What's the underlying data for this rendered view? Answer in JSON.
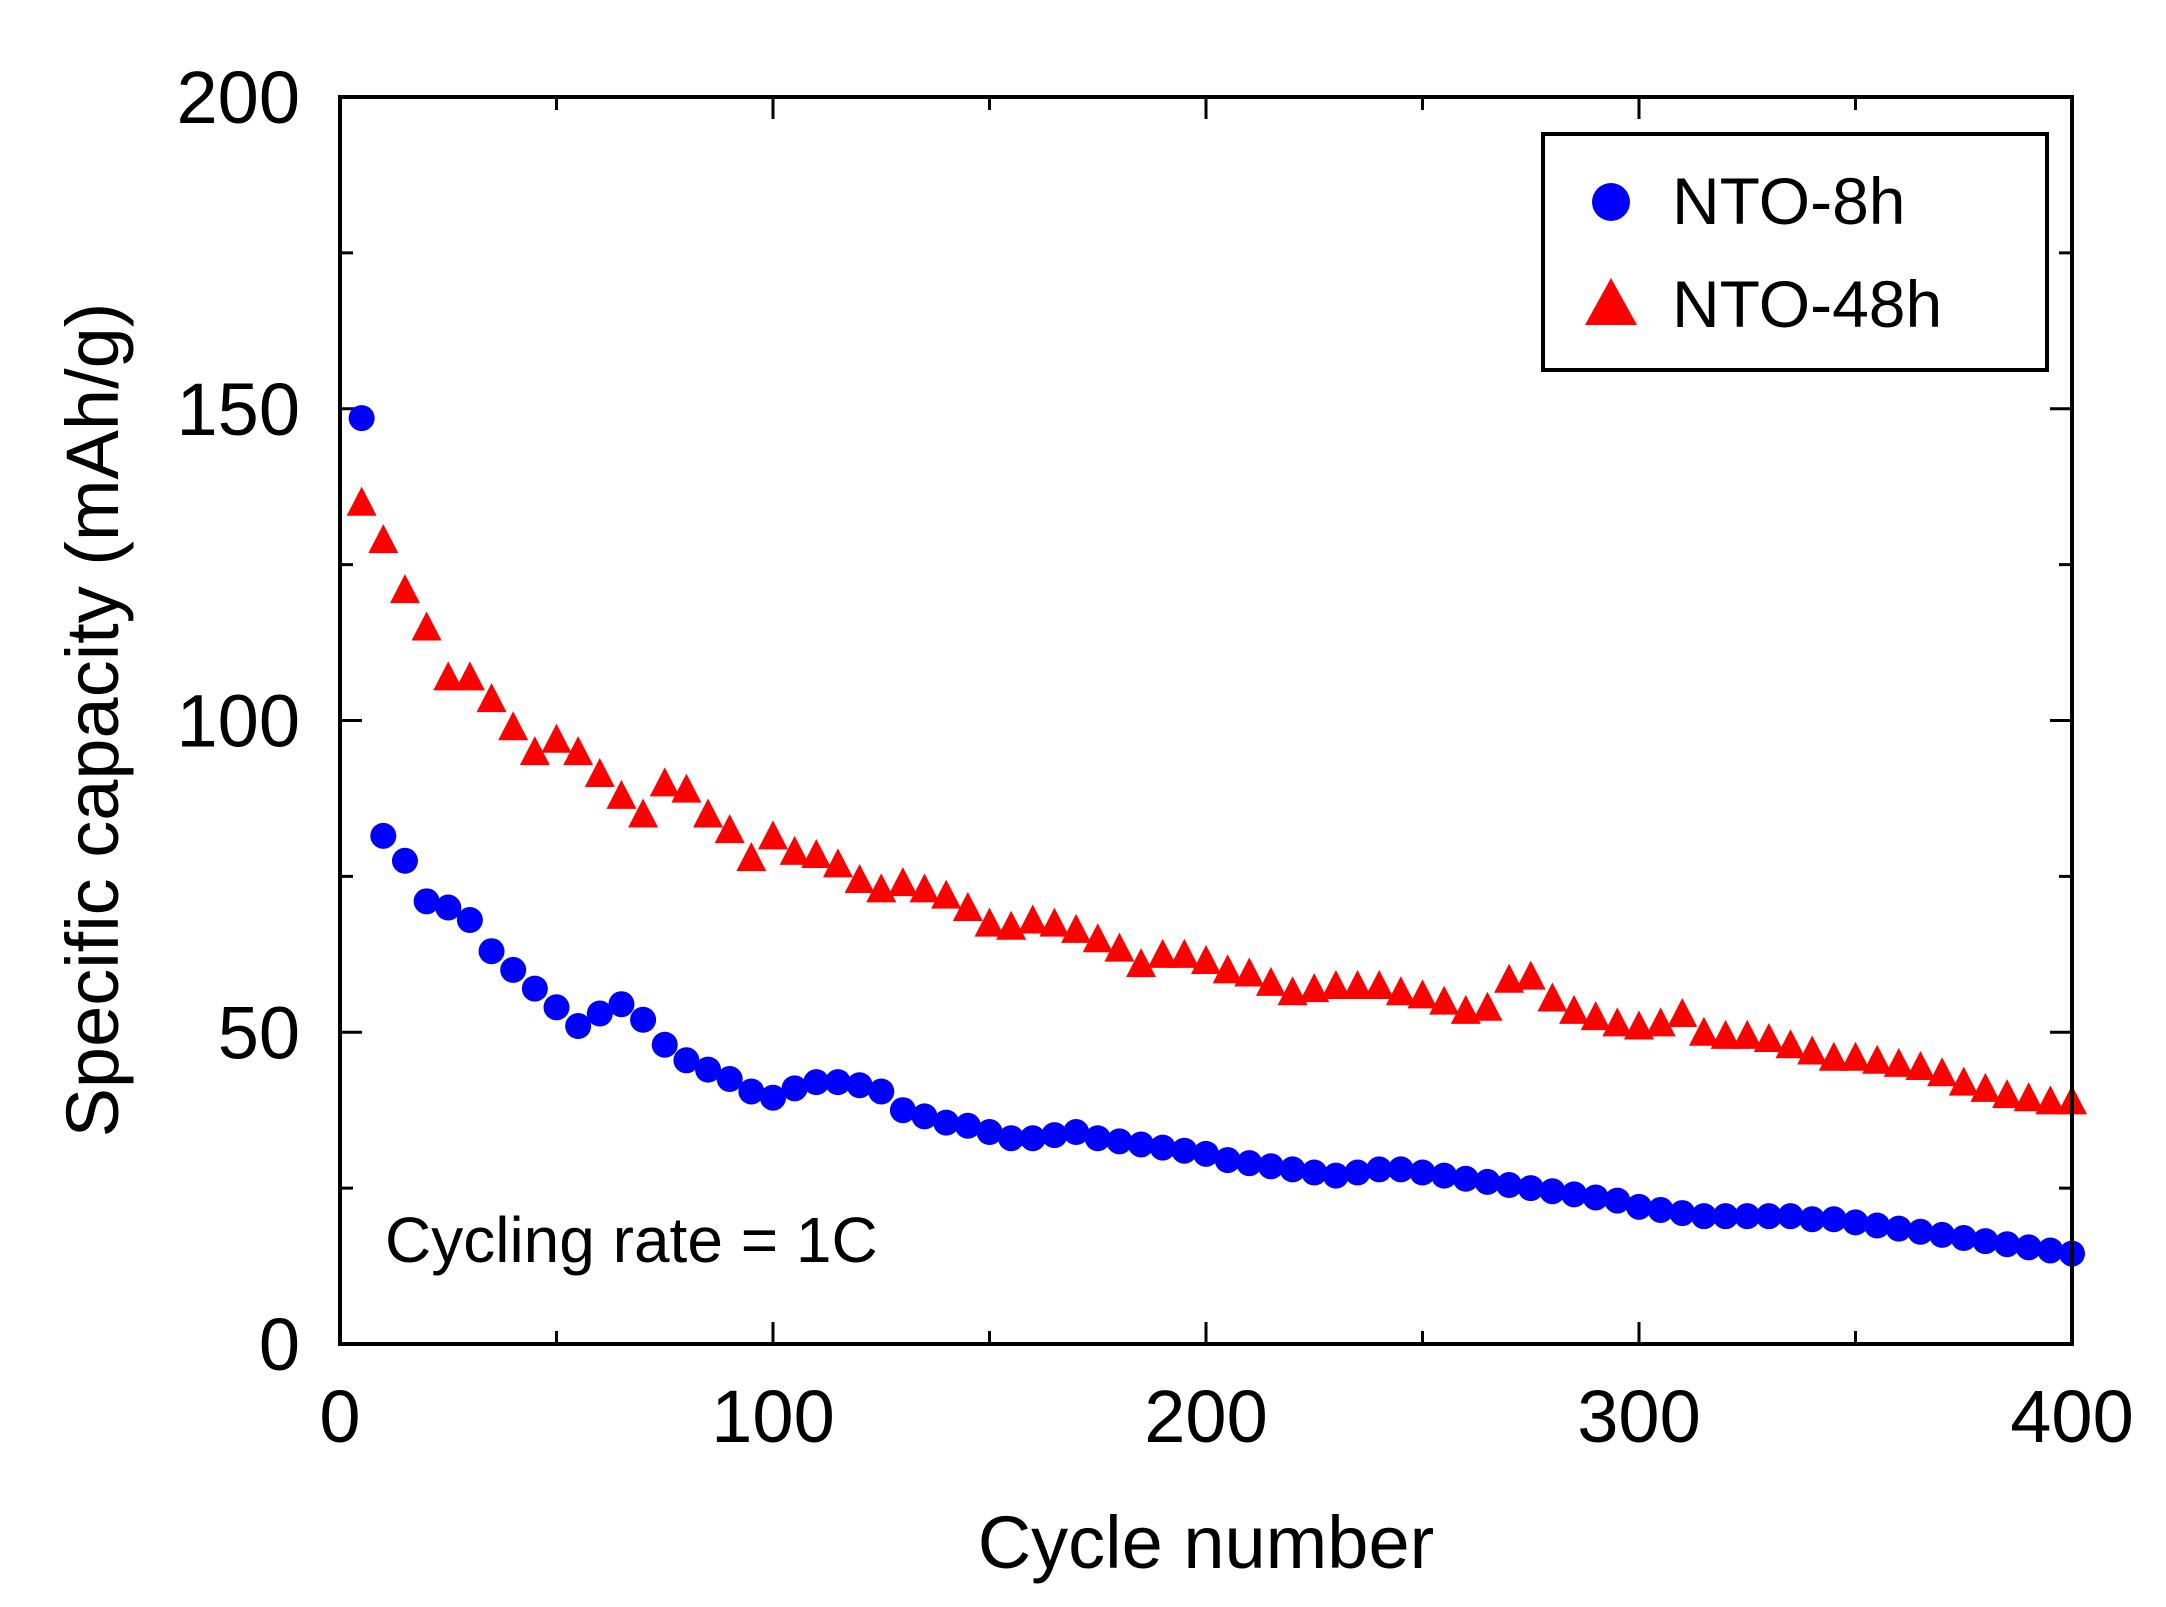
{
  "chart_data": {
    "type": "scatter",
    "xlabel": "Cycle number",
    "ylabel": "Specific capacity (mAh/g)",
    "xlim": [
      0,
      400
    ],
    "ylim": [
      0,
      200
    ],
    "xticks": [
      0,
      100,
      200,
      300,
      400
    ],
    "yticks": [
      0,
      50,
      100,
      150,
      200
    ],
    "annotation": "Cycling rate = 1C",
    "legend_position": "top-right",
    "series": [
      {
        "name": "NTO-8h",
        "marker": "circle",
        "color": "#0000ff",
        "points": [
          [
            5,
            148.5
          ],
          [
            10,
            81.5
          ],
          [
            15,
            77.5
          ],
          [
            20,
            71
          ],
          [
            25,
            70
          ],
          [
            30,
            68
          ],
          [
            35,
            63
          ],
          [
            40,
            60
          ],
          [
            45,
            57
          ],
          [
            50,
            54
          ],
          [
            55,
            51
          ],
          [
            60,
            53
          ],
          [
            65,
            54.5
          ],
          [
            70,
            52
          ],
          [
            75,
            48
          ],
          [
            80,
            45.5
          ],
          [
            85,
            44
          ],
          [
            90,
            42.5
          ],
          [
            95,
            40.5
          ],
          [
            100,
            39.5
          ],
          [
            105,
            41
          ],
          [
            110,
            42
          ],
          [
            115,
            42
          ],
          [
            120,
            41.5
          ],
          [
            125,
            40.5
          ],
          [
            130,
            37.5
          ],
          [
            135,
            36.5
          ],
          [
            140,
            35.5
          ],
          [
            145,
            35
          ],
          [
            150,
            34
          ],
          [
            155,
            33
          ],
          [
            160,
            33
          ],
          [
            165,
            33.5
          ],
          [
            170,
            34
          ],
          [
            175,
            33
          ],
          [
            180,
            32.5
          ],
          [
            185,
            32
          ],
          [
            190,
            31.5
          ],
          [
            195,
            31
          ],
          [
            200,
            30.5
          ],
          [
            205,
            29.5
          ],
          [
            210,
            29
          ],
          [
            215,
            28.5
          ],
          [
            220,
            28
          ],
          [
            225,
            27.5
          ],
          [
            230,
            27
          ],
          [
            235,
            27.5
          ],
          [
            240,
            28
          ],
          [
            245,
            28
          ],
          [
            250,
            27.5
          ],
          [
            255,
            27
          ],
          [
            260,
            26.5
          ],
          [
            265,
            26
          ],
          [
            270,
            25.5
          ],
          [
            275,
            25
          ],
          [
            280,
            24.5
          ],
          [
            285,
            24
          ],
          [
            290,
            23.5
          ],
          [
            295,
            23
          ],
          [
            300,
            22
          ],
          [
            305,
            21.5
          ],
          [
            310,
            21
          ],
          [
            315,
            20.5
          ],
          [
            320,
            20.5
          ],
          [
            325,
            20.5
          ],
          [
            330,
            20.5
          ],
          [
            335,
            20.5
          ],
          [
            340,
            20
          ],
          [
            345,
            20
          ],
          [
            350,
            19.5
          ],
          [
            355,
            19
          ],
          [
            360,
            18.5
          ],
          [
            365,
            18
          ],
          [
            370,
            17.5
          ],
          [
            375,
            17
          ],
          [
            380,
            16.5
          ],
          [
            385,
            16
          ],
          [
            390,
            15.5
          ],
          [
            395,
            15
          ],
          [
            400,
            14.5
          ]
        ]
      },
      {
        "name": "NTO-48h",
        "marker": "triangle",
        "color": "#ff0000",
        "points": [
          [
            5,
            135
          ],
          [
            10,
            129
          ],
          [
            15,
            121
          ],
          [
            20,
            115
          ],
          [
            25,
            107
          ],
          [
            30,
            107
          ],
          [
            35,
            103.5
          ],
          [
            40,
            99
          ],
          [
            45,
            95
          ],
          [
            50,
            97
          ],
          [
            55,
            95
          ],
          [
            60,
            91.5
          ],
          [
            65,
            88
          ],
          [
            70,
            85
          ],
          [
            75,
            90
          ],
          [
            80,
            89
          ],
          [
            85,
            85
          ],
          [
            90,
            82.5
          ],
          [
            95,
            78
          ],
          [
            100,
            81.5
          ],
          [
            105,
            79
          ],
          [
            110,
            78.5
          ],
          [
            115,
            77
          ],
          [
            120,
            74.5
          ],
          [
            125,
            73
          ],
          [
            130,
            74
          ],
          [
            135,
            73
          ],
          [
            140,
            72
          ],
          [
            145,
            70
          ],
          [
            150,
            67.5
          ],
          [
            155,
            67
          ],
          [
            160,
            68
          ],
          [
            165,
            67.5
          ],
          [
            170,
            66.5
          ],
          [
            175,
            65
          ],
          [
            180,
            63.5
          ],
          [
            185,
            61
          ],
          [
            190,
            62.5
          ],
          [
            195,
            62.5
          ],
          [
            200,
            61.5
          ],
          [
            205,
            60
          ],
          [
            210,
            59.5
          ],
          [
            215,
            58
          ],
          [
            220,
            56.5
          ],
          [
            225,
            57
          ],
          [
            230,
            57.5
          ],
          [
            235,
            57.5
          ],
          [
            240,
            57.5
          ],
          [
            245,
            56.5
          ],
          [
            250,
            56
          ],
          [
            255,
            55
          ],
          [
            260,
            53.5
          ],
          [
            265,
            54
          ],
          [
            270,
            58.5
          ],
          [
            275,
            59
          ],
          [
            280,
            55.5
          ],
          [
            285,
            53.5
          ],
          [
            290,
            52.5
          ],
          [
            295,
            51.5
          ],
          [
            300,
            51
          ],
          [
            305,
            51.5
          ],
          [
            310,
            53
          ],
          [
            315,
            50
          ],
          [
            320,
            49.5
          ],
          [
            325,
            49.5
          ],
          [
            330,
            49
          ],
          [
            335,
            48
          ],
          [
            340,
            47
          ],
          [
            345,
            46
          ],
          [
            350,
            46
          ],
          [
            355,
            45.5
          ],
          [
            360,
            45
          ],
          [
            365,
            44.5
          ],
          [
            370,
            43.5
          ],
          [
            375,
            42
          ],
          [
            380,
            41
          ],
          [
            385,
            40
          ],
          [
            390,
            39.5
          ],
          [
            395,
            39
          ],
          [
            400,
            39
          ]
        ]
      }
    ]
  }
}
